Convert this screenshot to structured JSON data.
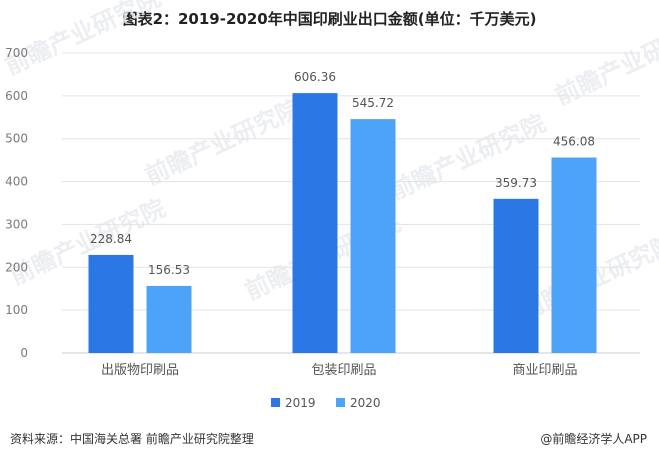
{
  "page": {
    "title": "图表2：2019-2020年中国印刷业出口金额(单位：千万美元)",
    "source": "资料来源：中国海关总署 前瞻产业研究院整理",
    "brand": "@前瞻经济学人APP",
    "watermark": "前瞻产业研究院"
  },
  "colors": {
    "series_2019": "#2b78e4",
    "series_2020": "#4da3f7",
    "grid": "#e3e3e3",
    "axis": "#cccccc"
  },
  "chart_data": {
    "type": "bar",
    "title": "图表2：2019-2020年中国印刷业出口金额(单位：千万美元)",
    "categories": [
      "出版物印刷品",
      "包装印刷品",
      "商业印刷品"
    ],
    "series": [
      {
        "name": "2019",
        "values": [
          228.84,
          606.36,
          359.73
        ]
      },
      {
        "name": "2020",
        "values": [
          156.53,
          545.72,
          456.08
        ]
      }
    ],
    "ylim": [
      0,
      700
    ],
    "yticks": [
      0,
      100,
      200,
      300,
      400,
      500,
      600,
      700
    ],
    "grid": true,
    "legend": "bottom-center"
  }
}
